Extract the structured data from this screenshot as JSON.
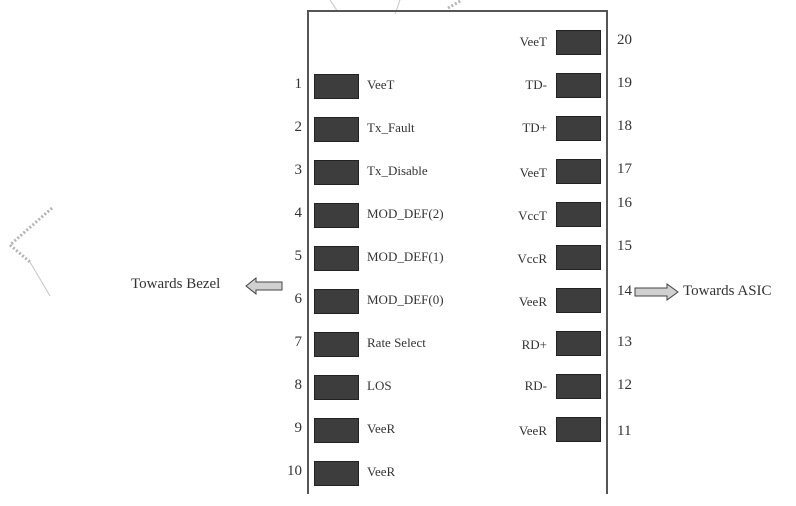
{
  "left_pins": [
    {
      "num": "1",
      "label": "VeeT"
    },
    {
      "num": "2",
      "label": "Tx_Fault"
    },
    {
      "num": "3",
      "label": "Tx_Disable"
    },
    {
      "num": "4",
      "label": "MOD_DEF(2)"
    },
    {
      "num": "5",
      "label": "MOD_DEF(1)"
    },
    {
      "num": "6",
      "label": "MOD_DEF(0)"
    },
    {
      "num": "7",
      "label": "Rate Select"
    },
    {
      "num": "8",
      "label": "LOS"
    },
    {
      "num": "9",
      "label": "VeeR"
    },
    {
      "num": "10",
      "label": "VeeR"
    }
  ],
  "right_pins": [
    {
      "num": "20",
      "label": "VeeT"
    },
    {
      "num": "19",
      "label": "TD-"
    },
    {
      "num": "18",
      "label": "TD+"
    },
    {
      "num": "17",
      "label": "VeeT"
    },
    {
      "num": "16",
      "label": "VccT"
    },
    {
      "num": "15",
      "label": "VccR"
    },
    {
      "num": "14",
      "label": "VeeR"
    },
    {
      "num": "13",
      "label": "RD+"
    },
    {
      "num": "12",
      "label": "RD-"
    },
    {
      "num": "11",
      "label": "VeeR"
    }
  ],
  "arrows": {
    "left_label": "Towards Bezel",
    "right_label": "Towards ASIC"
  },
  "colors": {
    "pad_fill": "#3d3d3d",
    "arrow_fill": "#d0d0d0",
    "outline": "#555555"
  }
}
